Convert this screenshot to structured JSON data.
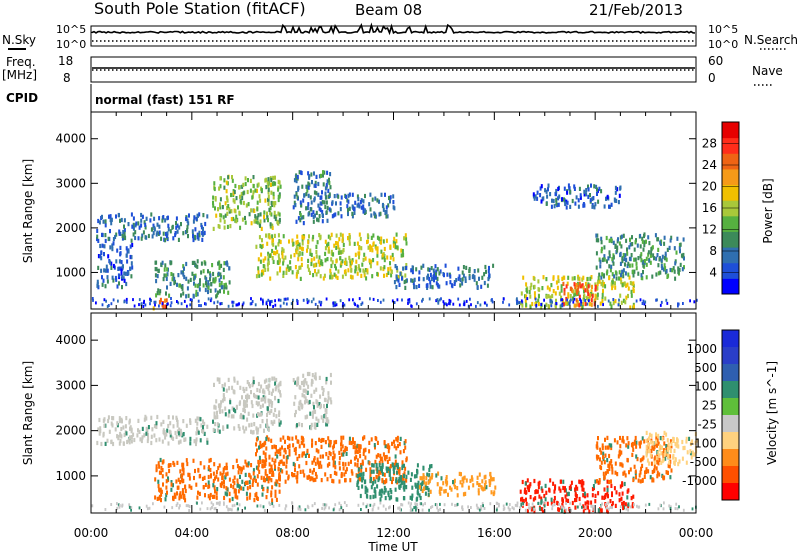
{
  "header": {
    "station": "South Pole Station (fitACF)",
    "beam": "Beam 08",
    "date": "21/Feb/2013"
  },
  "colors": {
    "power_scale": [
      "#0000ff",
      "#1e4fd8",
      "#2f6fb0",
      "#3c8a5a",
      "#56b040",
      "#a8c83a",
      "#f0c000",
      "#f59a18",
      "#ef6414",
      "#ff2d1a",
      "#e60000"
    ],
    "velocity_scale": [
      "#ff0000",
      "#ff5000",
      "#ff8c1a",
      "#ffd27f",
      "#c8c8c8",
      "#5fbf3a",
      "#2f8f6f",
      "#2f5fb0",
      "#2a3ec8",
      "#1a2ad8"
    ]
  },
  "chart_data": [
    {
      "type": "line",
      "panel": "nsky-nsearch",
      "left_label": "N.Sky",
      "right_label": "N.Search",
      "left_ticks": [
        "10^5",
        "10^0"
      ],
      "right_ticks": [
        "10^5",
        "10^0"
      ]
    },
    {
      "type": "line",
      "panel": "freq-nave",
      "left_label": "Freq.",
      "left_unit": "[MHz]",
      "right_label": "Nave",
      "left_ticks": [
        18,
        8
      ],
      "right_ticks": [
        60,
        0
      ]
    },
    {
      "type": "table",
      "panel": "cpid",
      "label": "CPID",
      "value": "normal (fast) 151 RF"
    },
    {
      "type": "heatmap",
      "panel": "power",
      "ylabel": "Slant Range [km]",
      "ylim": [
        180,
        4600
      ],
      "yticks": [
        1000,
        2000,
        3000,
        4000
      ],
      "xticks": [
        "00:00",
        "04:00",
        "08:00",
        "12:00",
        "16:00",
        "20:00",
        "00:00"
      ],
      "xlim": [
        "00:00",
        "24:00"
      ],
      "colorbar": {
        "label": "Power [dB]",
        "ticks": [
          4,
          8,
          12,
          16,
          20,
          24,
          28
        ],
        "range": [
          0,
          32
        ]
      },
      "echo_regions": [
        {
          "t": [
            0.2,
            4.6
          ],
          "r": [
            1750,
            2350
          ],
          "v": 7
        },
        {
          "t": [
            0.2,
            1.6
          ],
          "r": [
            700,
            1700
          ],
          "v": 6
        },
        {
          "t": [
            2.5,
            5.5
          ],
          "r": [
            500,
            1300
          ],
          "v": 10
        },
        {
          "t": [
            4.8,
            7.5
          ],
          "r": [
            2000,
            3200
          ],
          "v": 14
        },
        {
          "t": [
            6.5,
            12.5
          ],
          "r": [
            900,
            1900
          ],
          "v": 16
        },
        {
          "t": [
            8.0,
            9.5
          ],
          "r": [
            2100,
            3300
          ],
          "v": 8
        },
        {
          "t": [
            9.0,
            12.0
          ],
          "r": [
            2300,
            2800
          ],
          "v": 7
        },
        {
          "t": [
            12.0,
            16.0
          ],
          "r": [
            700,
            1200
          ],
          "v": 7
        },
        {
          "t": [
            17.0,
            21.5
          ],
          "r": [
            250,
            950
          ],
          "v": 16
        },
        {
          "t": [
            18.7,
            20.0
          ],
          "r": [
            300,
            800
          ],
          "v": 25
        },
        {
          "t": [
            20.0,
            23.5
          ],
          "r": [
            900,
            1900
          ],
          "v": 10
        },
        {
          "t": [
            17.5,
            21.0
          ],
          "r": [
            2500,
            3000
          ],
          "v": 6
        },
        {
          "t": [
            2.4,
            3.0
          ],
          "r": [
            200,
            450
          ],
          "v": 24
        }
      ]
    },
    {
      "type": "heatmap",
      "panel": "velocity",
      "ylabel": "Slant Range [km]",
      "xlabel": "Time UT",
      "ylim": [
        180,
        4600
      ],
      "yticks": [
        1000,
        2000,
        3000,
        4000
      ],
      "xticks": [
        "00:00",
        "04:00",
        "08:00",
        "12:00",
        "16:00",
        "20:00",
        "00:00"
      ],
      "xlim": [
        "00:00",
        "24:00"
      ],
      "colorbar": {
        "label": "Velocity [m s^-1]",
        "ticks": [
          "1000",
          "500",
          "100",
          "25",
          "-25",
          "-100",
          "-500",
          "-1000"
        ]
      },
      "echo_regions": [
        {
          "t": [
            0.2,
            4.6
          ],
          "r": [
            1750,
            2350
          ],
          "v": "gray"
        },
        {
          "t": [
            4.8,
            7.5
          ],
          "r": [
            2000,
            3200
          ],
          "v": "gray"
        },
        {
          "t": [
            8.0,
            9.5
          ],
          "r": [
            2100,
            3300
          ],
          "v": "gray"
        },
        {
          "t": [
            2.5,
            7.5
          ],
          "r": [
            500,
            1400
          ],
          "v": "-500"
        },
        {
          "t": [
            6.5,
            12.5
          ],
          "r": [
            900,
            1900
          ],
          "v": "-500"
        },
        {
          "t": [
            10.5,
            13.5
          ],
          "r": [
            500,
            1300
          ],
          "v": "100"
        },
        {
          "t": [
            13.0,
            16.0
          ],
          "r": [
            600,
            1100
          ],
          "v": "-100"
        },
        {
          "t": [
            17.0,
            21.5
          ],
          "r": [
            250,
            950
          ],
          "v": "-1000"
        },
        {
          "t": [
            20.0,
            23.0
          ],
          "r": [
            900,
            1900
          ],
          "v": "-500"
        },
        {
          "t": [
            22.0,
            24.0
          ],
          "r": [
            1300,
            2000
          ],
          "v": "-25"
        }
      ]
    }
  ]
}
